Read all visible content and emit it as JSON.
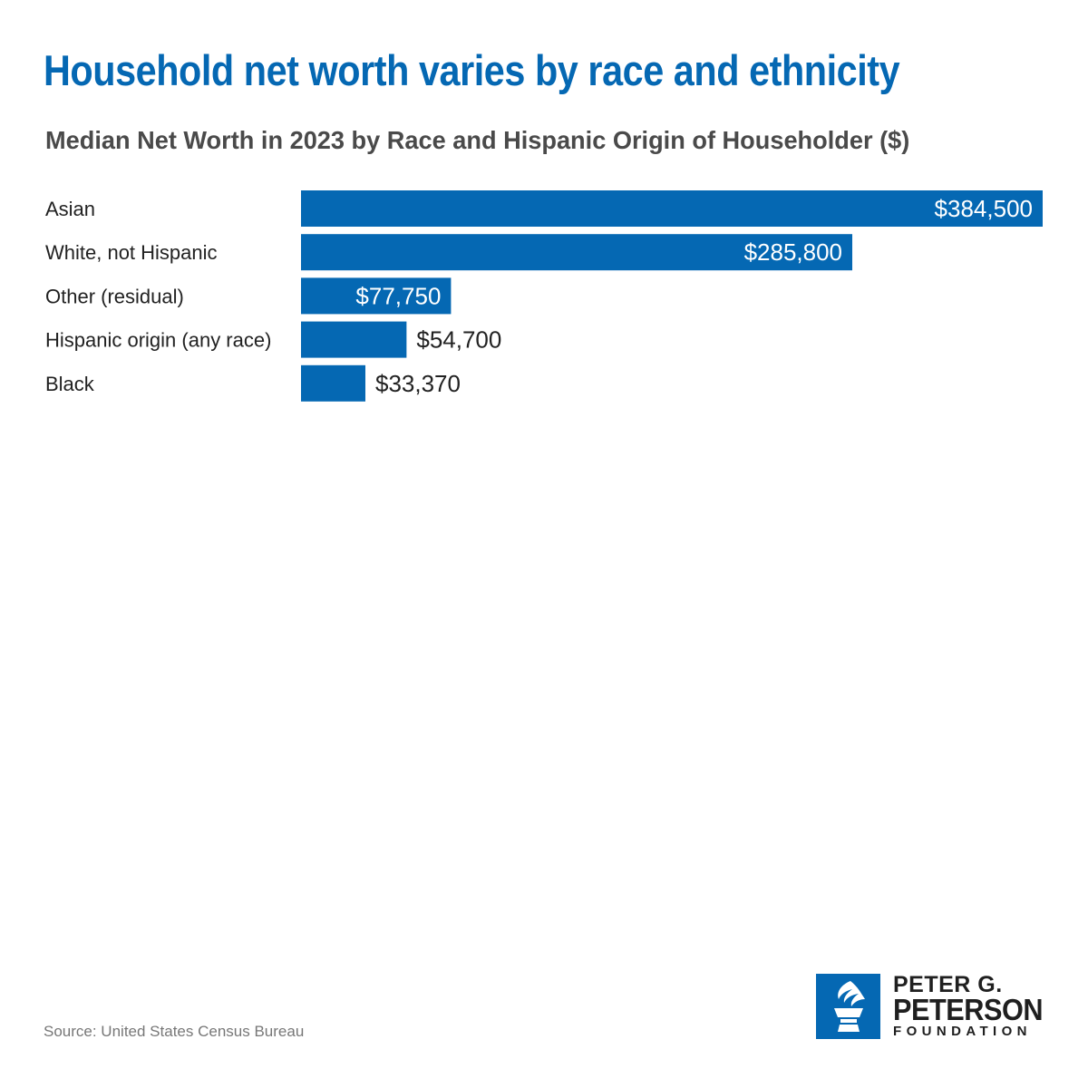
{
  "title": "Household net worth varies by race and ethnicity",
  "subtitle": "Median Net Worth in 2023 by Race and Hispanic Origin of Householder ($)",
  "source": "Source: United States Census Bureau",
  "logo": {
    "line1": "PETER G.",
    "line2": "PETERSON",
    "line3": "FOUNDATION"
  },
  "colors": {
    "title": "#0568b3",
    "bar": "#0568b3",
    "label_inside": "#ffffff",
    "label_outside": "#222222"
  },
  "chart_data": {
    "type": "bar",
    "orientation": "horizontal",
    "title": "Median Net Worth in 2023 by Race and Hispanic Origin of Householder ($)",
    "categories": [
      "Asian",
      "White, not Hispanic",
      "Other (residual)",
      "Hispanic origin (any race)",
      "Black"
    ],
    "values": [
      384500,
      285800,
      77750,
      54700,
      33370
    ],
    "value_labels": [
      "$384,500",
      "$285,800",
      "$77,750",
      "$54,700",
      "$33,370"
    ],
    "xlim": [
      0,
      384500
    ],
    "xlabel": "",
    "ylabel": "",
    "grid": false,
    "legend": "none"
  }
}
